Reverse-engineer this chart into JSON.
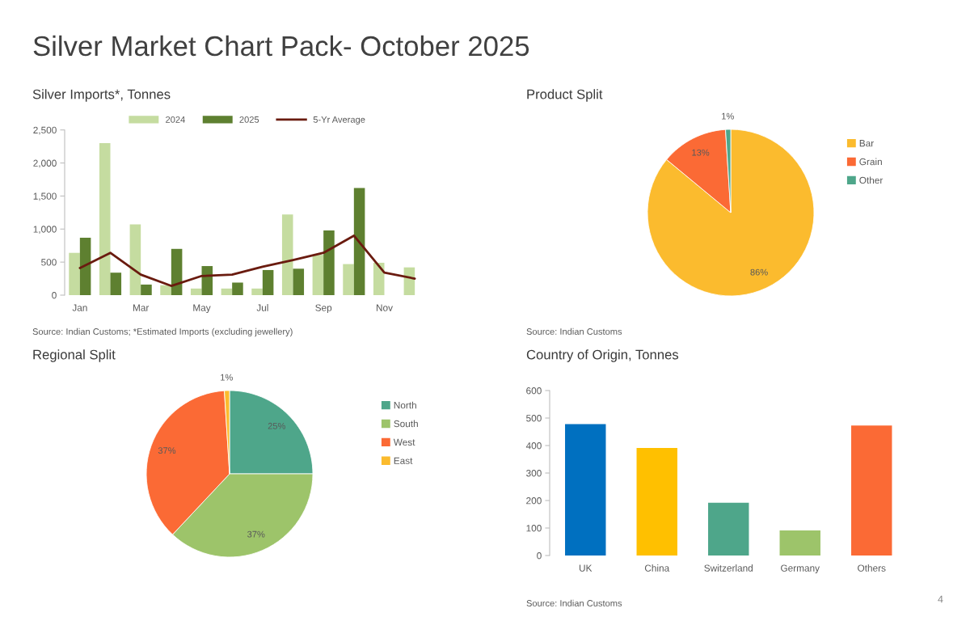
{
  "chart_data": [
    {
      "type": "other",
      "title": "Silver Market Chart Pack- October 2025",
      "annotations": [
        "4"
      ]
    },
    {
      "type": "bar",
      "title": "Silver Imports*, Tonnes",
      "categories": [
        "Jan",
        null,
        "Mar",
        null,
        "May",
        null,
        "Jul",
        null,
        "Sep",
        null,
        "Nov",
        null
      ],
      "series": [
        {
          "name": "2024",
          "color": "#c5dca0",
          "values": [
            640,
            2300,
            1070,
            150,
            100,
            100,
            100,
            1220,
            610,
            470,
            490,
            420
          ]
        },
        {
          "name": "2025",
          "color": "#5e8030",
          "values": [
            870,
            340,
            160,
            700,
            440,
            190,
            380,
            400,
            980,
            1620,
            null,
            null
          ]
        },
        {
          "name": "5-Yr Average",
          "type": "line",
          "color": "#6a1b0f",
          "values": [
            410,
            640,
            310,
            140,
            290,
            310,
            430,
            530,
            640,
            900,
            340,
            250
          ]
        }
      ],
      "ylim": [
        0,
        2500
      ],
      "yticks": [
        0,
        500,
        {
          "value": 1000,
          "label": "1,000"
        },
        {
          "value": 1500,
          "label": "1,500"
        },
        {
          "value": 2000,
          "label": "2,000"
        },
        {
          "value": 2500,
          "label": "2,500"
        }
      ],
      "legend": "top",
      "annotations": [
        "Source: Indian Customs; *Estimated Imports (excluding jewellery)"
      ]
    },
    {
      "type": "pie",
      "title": "Product Split",
      "categories": [
        "Bar",
        "Grain",
        "Other"
      ],
      "values": [
        86,
        13,
        1
      ],
      "colors": [
        "#fbbb2e",
        "#fb6a35",
        "#4ea68a"
      ],
      "value_labels": [
        "86%",
        "13%",
        "1%"
      ],
      "legend": "right",
      "annotations": [
        "Source: Indian Customs"
      ]
    },
    {
      "type": "pie",
      "title": "Regional Split",
      "categories": [
        "North",
        "South",
        "West",
        "East"
      ],
      "values": [
        25,
        37,
        37,
        1
      ],
      "colors": [
        "#4ea68a",
        "#9dc46a",
        "#fb6a35",
        "#fbbb2e"
      ],
      "value_labels": [
        "25%",
        "37%",
        "37%",
        "1%"
      ],
      "legend": "right"
    },
    {
      "type": "bar",
      "title": "Country of Origin, Tonnes",
      "categories": [
        "UK",
        "China",
        "Switzerland",
        "Germany",
        "Others"
      ],
      "values": [
        478,
        391,
        192,
        91,
        473
      ],
      "colors": [
        "#0070c0",
        "#ffc000",
        "#4ea68a",
        "#9dc46a",
        "#fb6a35"
      ],
      "ylim": [
        0,
        600
      ],
      "yticks": [
        0,
        100,
        200,
        300,
        400,
        500,
        600
      ],
      "annotations": [
        "Source: Indian Customs"
      ]
    }
  ]
}
